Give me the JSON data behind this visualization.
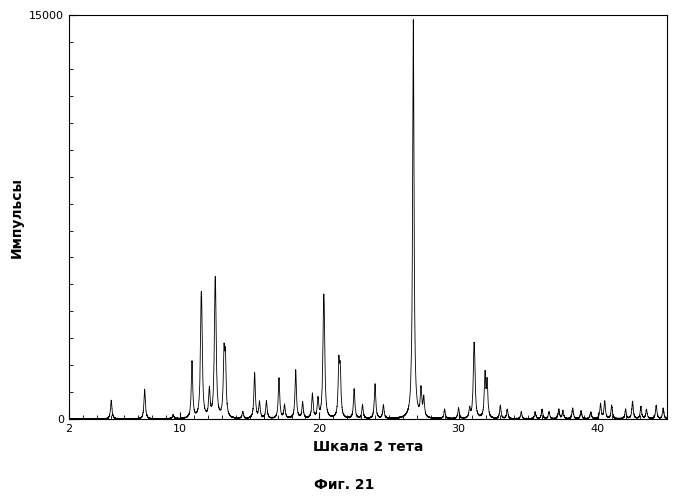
{
  "xlabel": "Шкала 2 тета",
  "ylabel": "Импульсы",
  "caption": "Фиг. 21",
  "xlim": [
    2,
    45
  ],
  "ylim": [
    0,
    15000
  ],
  "xticks": [
    2,
    10,
    20,
    30,
    40
  ],
  "ytick_top": "15000",
  "ytick_bottom": "0",
  "background_color": "#ffffff",
  "line_color": "#000000",
  "peaks": [
    [
      5.05,
      700
    ],
    [
      7.45,
      1100
    ],
    [
      9.5,
      150
    ],
    [
      10.85,
      2100
    ],
    [
      11.5,
      2900
    ],
    [
      11.55,
      2600
    ],
    [
      12.1,
      1000
    ],
    [
      12.5,
      3300
    ],
    [
      12.55,
      2800
    ],
    [
      13.15,
      2200
    ],
    [
      13.25,
      2000
    ],
    [
      14.5,
      250
    ],
    [
      15.35,
      1700
    ],
    [
      15.7,
      600
    ],
    [
      16.2,
      650
    ],
    [
      17.1,
      1500
    ],
    [
      17.5,
      500
    ],
    [
      18.3,
      1800
    ],
    [
      18.8,
      600
    ],
    [
      19.5,
      900
    ],
    [
      19.9,
      700
    ],
    [
      20.3,
      2900
    ],
    [
      20.35,
      2500
    ],
    [
      21.4,
      1900
    ],
    [
      21.5,
      1600
    ],
    [
      22.5,
      1100
    ],
    [
      23.1,
      500
    ],
    [
      24.0,
      1300
    ],
    [
      24.6,
      500
    ],
    [
      26.75,
      14800
    ],
    [
      27.3,
      1000
    ],
    [
      27.5,
      700
    ],
    [
      29.0,
      350
    ],
    [
      30.0,
      400
    ],
    [
      30.8,
      350
    ],
    [
      31.1,
      1800
    ],
    [
      31.15,
      1500
    ],
    [
      31.9,
      1600
    ],
    [
      32.05,
      1300
    ],
    [
      33.0,
      500
    ],
    [
      33.5,
      350
    ],
    [
      34.5,
      250
    ],
    [
      35.5,
      250
    ],
    [
      36.0,
      350
    ],
    [
      36.5,
      250
    ],
    [
      37.2,
      350
    ],
    [
      37.5,
      300
    ],
    [
      38.2,
      400
    ],
    [
      38.8,
      300
    ],
    [
      39.5,
      250
    ],
    [
      40.2,
      550
    ],
    [
      40.5,
      650
    ],
    [
      41.0,
      500
    ],
    [
      42.0,
      350
    ],
    [
      42.5,
      650
    ],
    [
      43.1,
      450
    ],
    [
      43.5,
      350
    ],
    [
      44.2,
      500
    ],
    [
      44.7,
      400
    ]
  ],
  "minor_xtick_interval": 1,
  "minor_ytick_interval": 1000
}
